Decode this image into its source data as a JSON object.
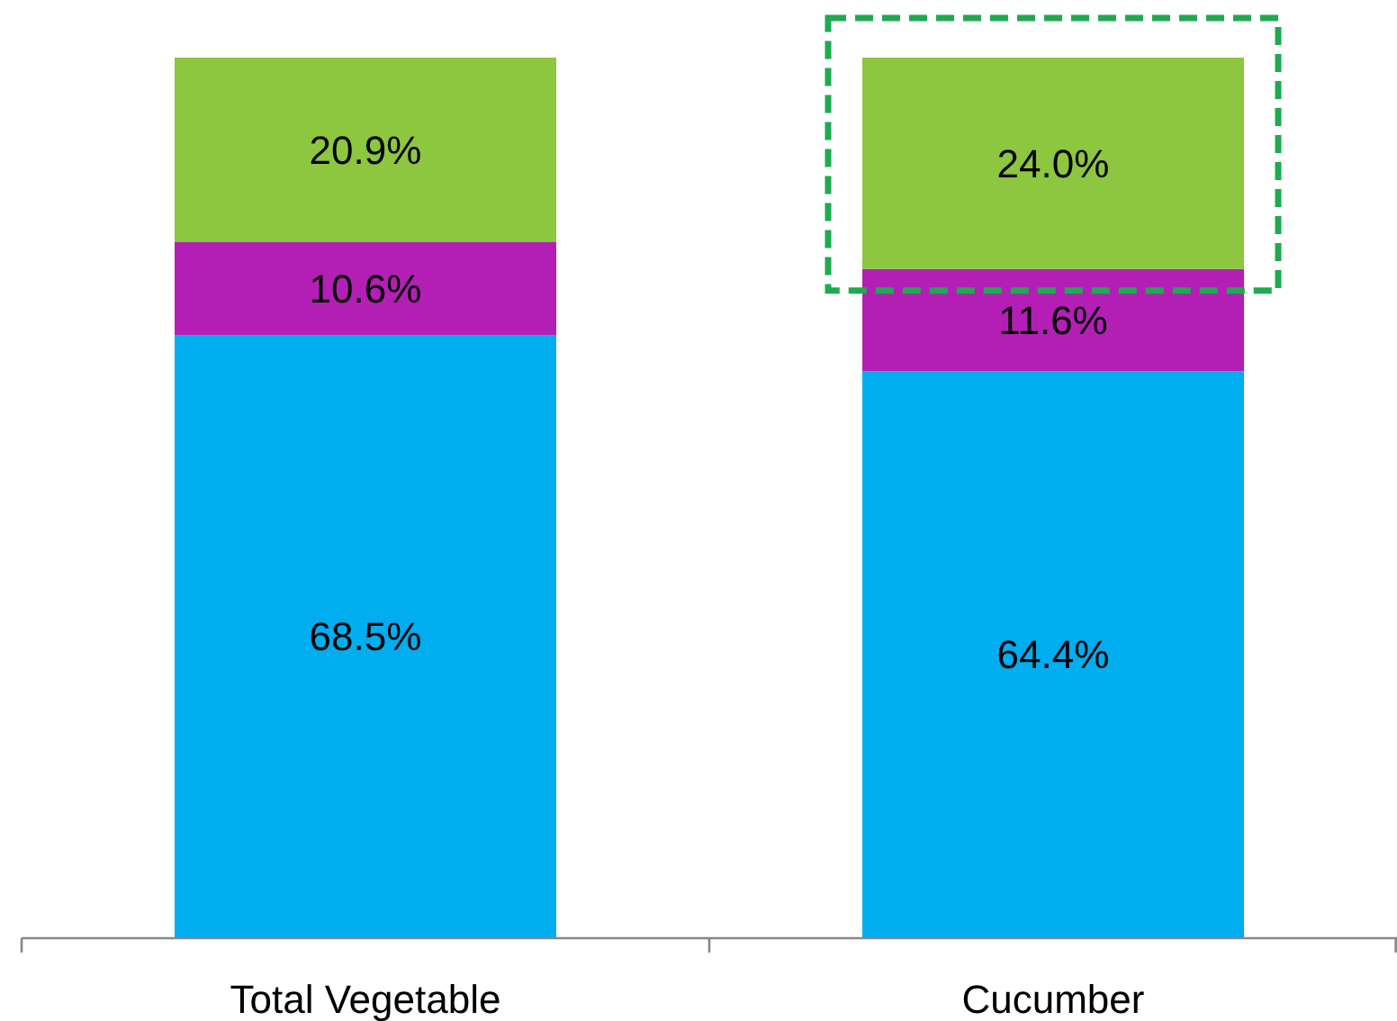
{
  "chart_data": {
    "type": "bar",
    "stacked": true,
    "categories": [
      "Total Vegetable",
      "Cucumber"
    ],
    "series": [
      {
        "color": "#00adef",
        "values": [
          68.5,
          64.4
        ],
        "value_labels": [
          "68.5%",
          "64.4%"
        ]
      },
      {
        "color": "#b31fb5",
        "values": [
          10.6,
          11.6
        ],
        "value_labels": [
          "10.6%",
          "11.6%"
        ]
      },
      {
        "color": "#8dc63f",
        "values": [
          20.9,
          24.0
        ],
        "value_labels": [
          "20.9%",
          "24.0%"
        ]
      }
    ]
  }
}
